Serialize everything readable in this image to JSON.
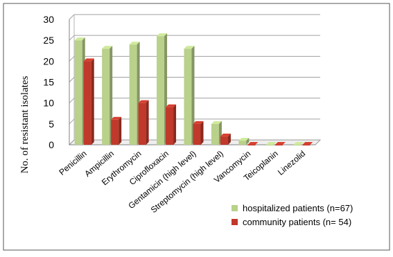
{
  "chart_data": {
    "type": "bar",
    "title": "",
    "xlabel": "",
    "ylabel": "No. of resistant isolates",
    "ylim": [
      0,
      30
    ],
    "yticks": [
      0,
      5,
      10,
      15,
      20,
      25,
      30
    ],
    "grid": true,
    "legend_position": "bottom-right",
    "categories": [
      "Penicillin",
      "Ampicillin",
      "Erythromycin",
      "Ciprofloxacin",
      "Gentamicin (high level)",
      "Streptomycin (high level)",
      "Vancomycin",
      "Teicoplanin",
      "Linezolid"
    ],
    "series": [
      {
        "name": "hospitalized patients (n=67)",
        "color": "#b9d18b",
        "values": [
          25,
          23,
          24,
          26,
          23,
          5,
          1,
          0,
          0
        ]
      },
      {
        "name": "community patients (n= 54)",
        "color": "#c0392b",
        "values": [
          20,
          6,
          10,
          9,
          5,
          2,
          0,
          0,
          0
        ]
      }
    ]
  }
}
